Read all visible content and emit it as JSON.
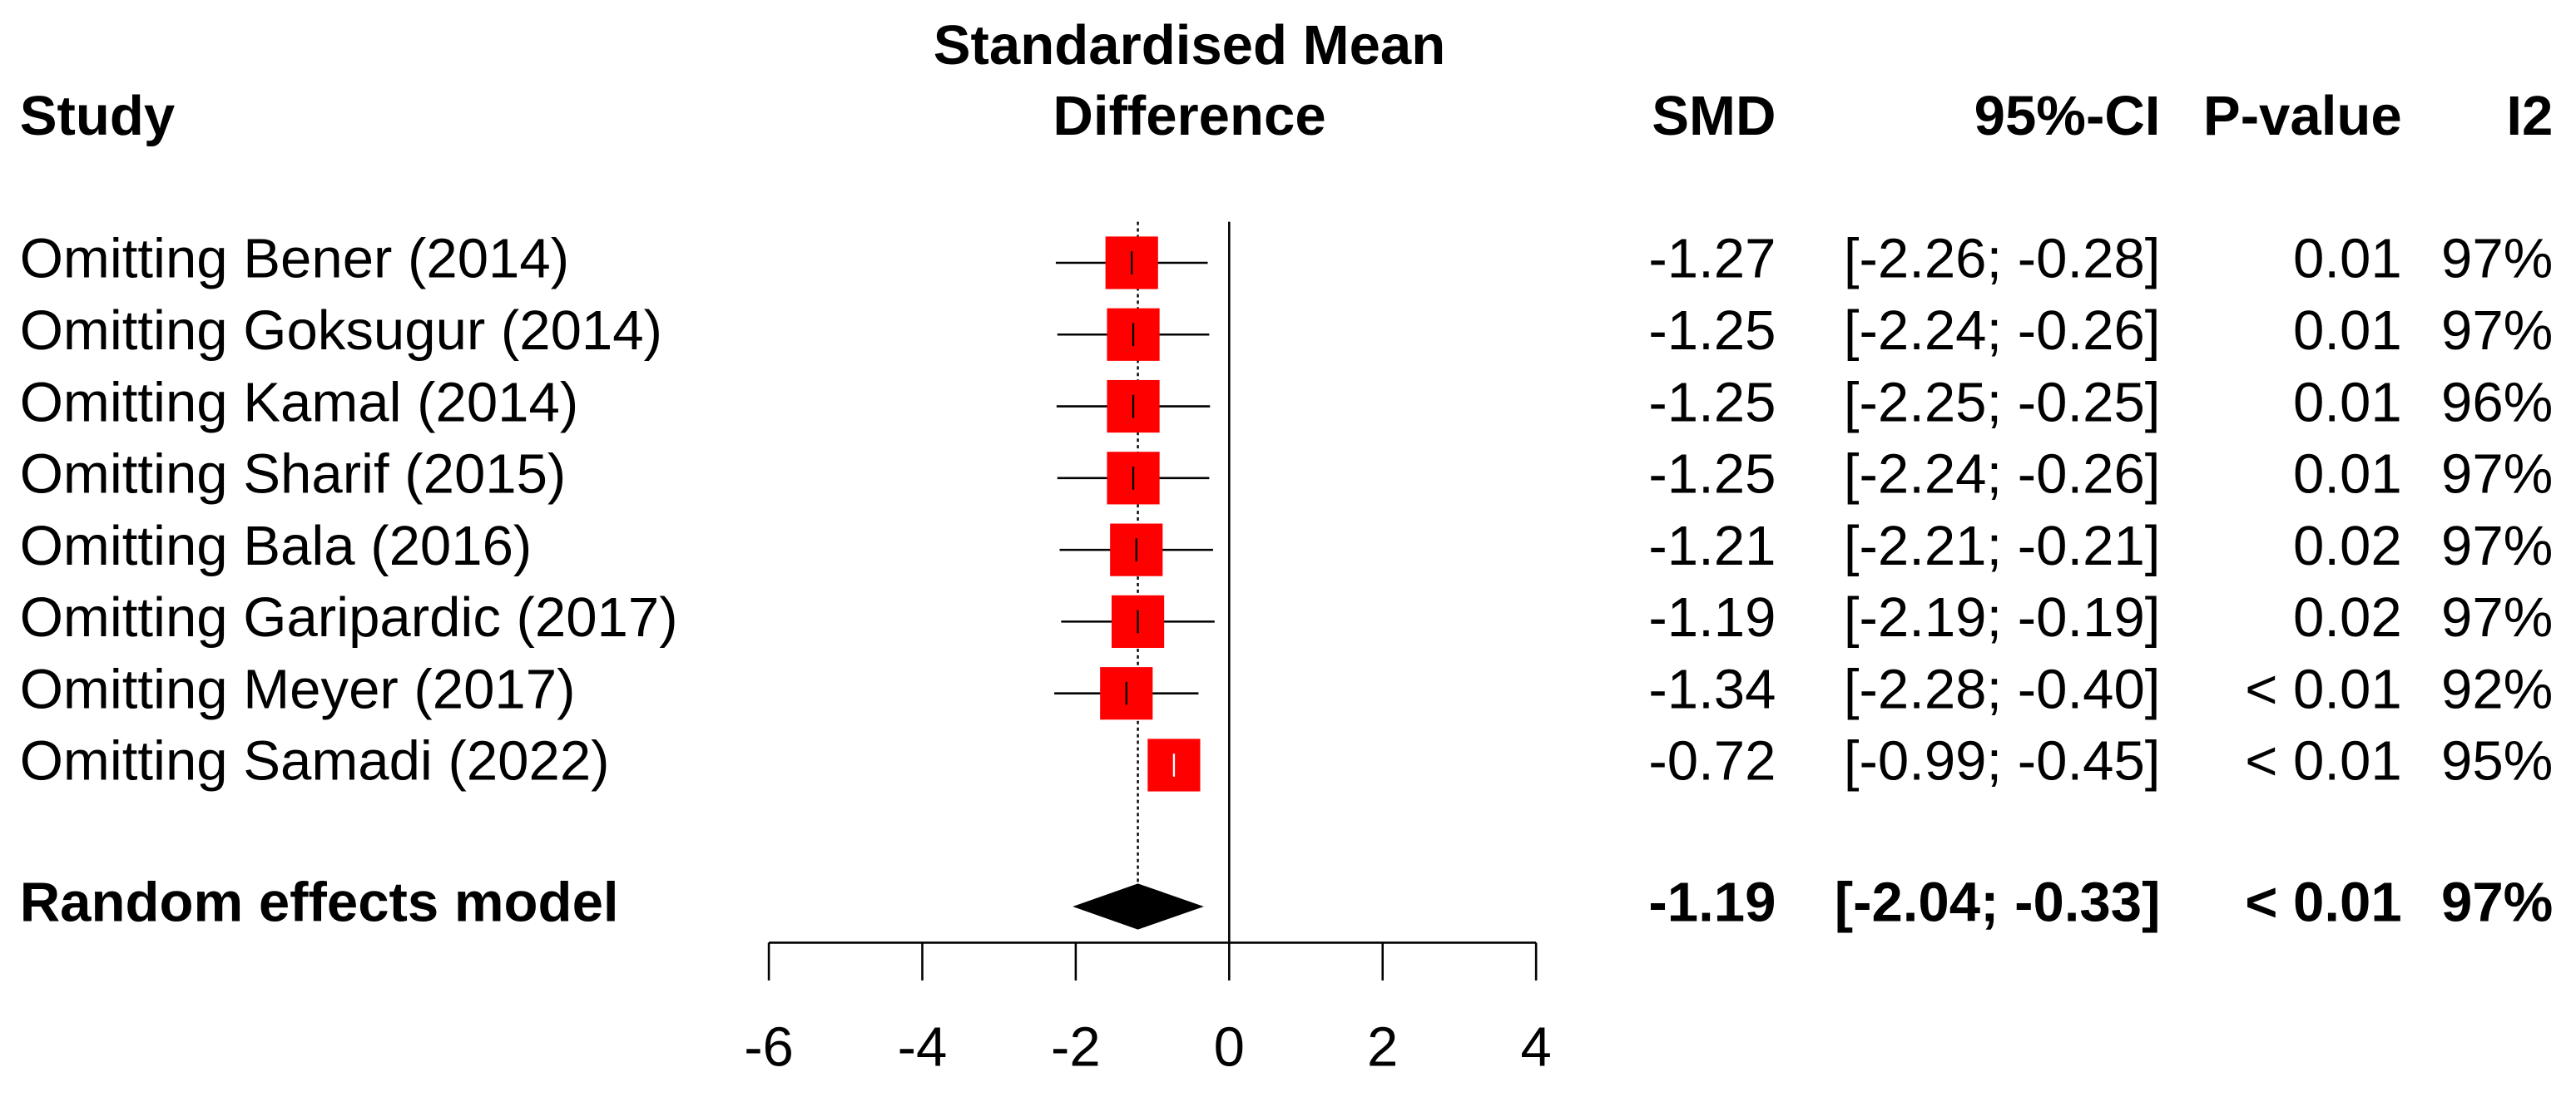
{
  "chart_data": {
    "type": "forest",
    "title": [
      "Standardised Mean",
      "Difference"
    ],
    "columns": {
      "study": "Study",
      "smd": "SMD",
      "ci": "95%-CI",
      "p": "P-value",
      "i2": "I2"
    },
    "studies": [
      "Omitting Bener (2014)",
      "Omitting Goksugur (2014)",
      "Omitting Kamal (2014)",
      "Omitting Sharif (2015)",
      "Omitting Bala (2016)",
      "Omitting Garipardic (2017)",
      "Omitting Meyer (2017)",
      "Omitting Samadi (2022)"
    ],
    "values": [
      -1.27,
      -1.25,
      -1.25,
      -1.25,
      -1.21,
      -1.19,
      -1.34,
      -0.72
    ],
    "value_labels": [
      "-1.27",
      "-1.25",
      "-1.25",
      "-1.25",
      "-1.21",
      "-1.19",
      "-1.34",
      "-0.72"
    ],
    "lower": [
      -2.26,
      -2.24,
      -2.25,
      -2.24,
      -2.21,
      -2.19,
      -2.28,
      -0.99
    ],
    "upper": [
      -0.28,
      -0.26,
      -0.25,
      -0.26,
      -0.21,
      -0.19,
      -0.4,
      -0.45
    ],
    "ci_labels": [
      "[-2.26; -0.28]",
      "[-2.24; -0.26]",
      "[-2.25; -0.25]",
      "[-2.24; -0.26]",
      "[-2.21; -0.21]",
      "[-2.19; -0.19]",
      "[-2.28; -0.40]",
      "[-0.99; -0.45]"
    ],
    "p_values": [
      "0.01",
      "0.01",
      "0.01",
      "0.01",
      "0.02",
      "0.02",
      "< 0.01",
      "< 0.01"
    ],
    "i2": [
      97,
      97,
      96,
      97,
      97,
      97,
      92,
      95
    ],
    "i2_labels": [
      "97%",
      "97%",
      "96%",
      "97%",
      "97%",
      "97%",
      "92%",
      "95%"
    ],
    "color": "#ff0000",
    "pooled": {
      "name": "Random effects model",
      "value": -1.19,
      "value_label": "-1.19",
      "lower": -2.04,
      "upper": -0.33,
      "ci_label": "[-2.04; -0.33]",
      "p_value": "< 0.01",
      "i2": 97,
      "i2_label": "97%"
    },
    "xlim": [
      -6,
      4
    ],
    "xticks": [
      -6,
      -4,
      -2,
      0,
      2,
      4
    ]
  }
}
